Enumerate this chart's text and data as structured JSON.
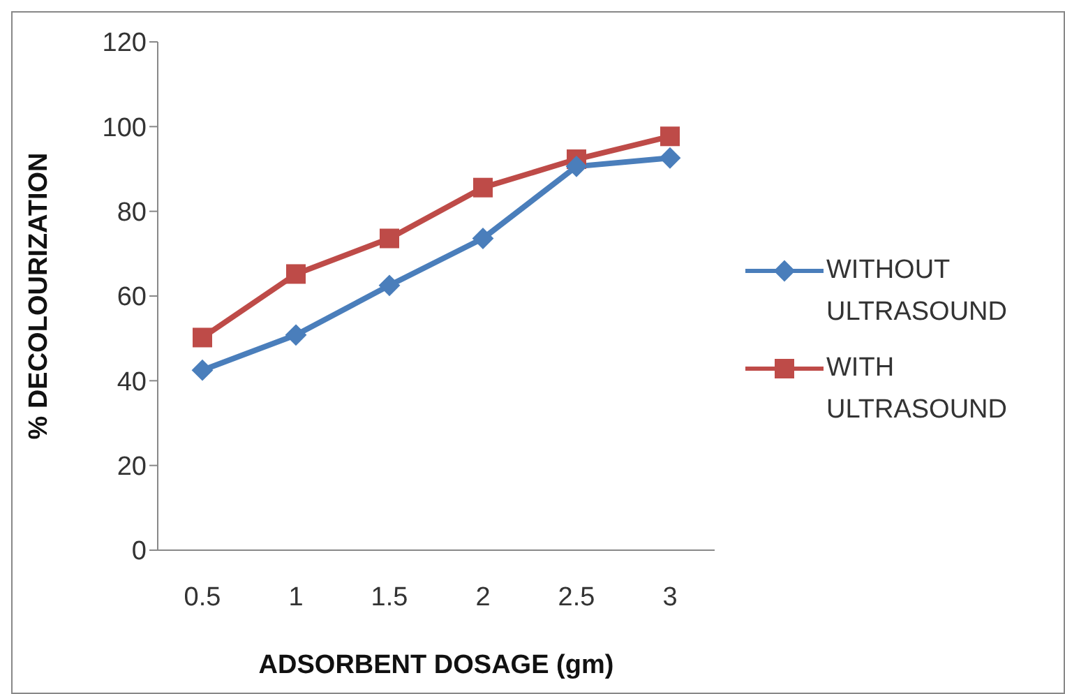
{
  "chart_data": {
    "type": "line",
    "xlabel": "ADSORBENT DOSAGE (gm)",
    "ylabel": "% DECOLOURIZATION",
    "categories": [
      "0.5",
      "1",
      "1.5",
      "2",
      "2.5",
      "3"
    ],
    "series": [
      {
        "name": "WITHOUT ULTRASOUND",
        "color": "#4a7ebb",
        "marker": "diamond",
        "values": [
          42.5,
          50.8,
          62.5,
          73.6,
          90.6,
          92.6
        ]
      },
      {
        "name": "WITH ULTRASOUND",
        "color": "#be4b48",
        "marker": "square",
        "values": [
          50.2,
          65.2,
          73.6,
          85.6,
          92.3,
          97.7
        ]
      }
    ],
    "ylim": [
      0,
      120
    ],
    "yticks": [
      0,
      20,
      40,
      60,
      80,
      100,
      120
    ],
    "grid": false,
    "legend": "right"
  }
}
